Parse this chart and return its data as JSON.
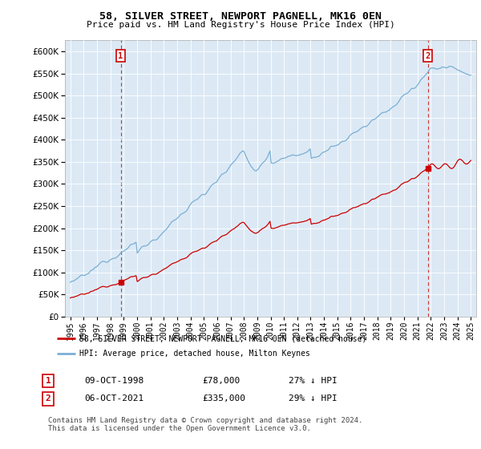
{
  "title": "58, SILVER STREET, NEWPORT PAGNELL, MK16 0EN",
  "subtitle": "Price paid vs. HM Land Registry's House Price Index (HPI)",
  "legend_label_red": "58, SILVER STREET, NEWPORT PAGNELL, MK16 0EN (detached house)",
  "legend_label_blue": "HPI: Average price, detached house, Milton Keynes",
  "transaction1_label": "1",
  "transaction1_date": "09-OCT-1998",
  "transaction1_price": "£78,000",
  "transaction1_hpi": "27% ↓ HPI",
  "transaction1_year": 1998.78,
  "transaction1_value": 78000,
  "transaction2_label": "2",
  "transaction2_date": "06-OCT-2021",
  "transaction2_price": "£335,000",
  "transaction2_hpi": "29% ↓ HPI",
  "transaction2_year": 2021.78,
  "transaction2_value": 335000,
  "footer": "Contains HM Land Registry data © Crown copyright and database right 2024.\nThis data is licensed under the Open Government Licence v3.0.",
  "red_color": "#cc0000",
  "blue_color": "#7bafd4",
  "plot_bg_color": "#dce9f5",
  "background_color": "#ffffff",
  "grid_color": "#ffffff",
  "vline_color": "#cc3333"
}
